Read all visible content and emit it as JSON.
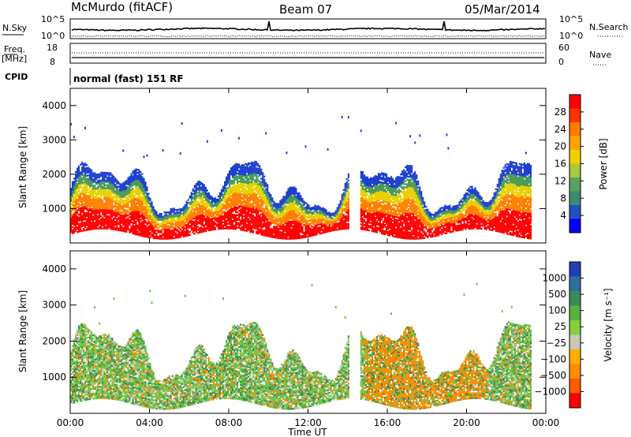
{
  "header": {
    "station": "McMurdo (fitACF)",
    "beam": "Beam 07",
    "date": "05/Mar/2014"
  },
  "top_panels": {
    "nsky_label": "N.Sky",
    "nsky_ticks": [
      "10^5",
      "10^0"
    ],
    "nsearch_label": "N.Search",
    "nsearch_ticks": [
      "10^5",
      "10^0"
    ],
    "freq_label": "Freq.",
    "freq_unit": "[MHz]",
    "freq_ticks": [
      "18",
      "8"
    ],
    "nave_label": "Nave",
    "nave_ticks": [
      "60",
      "0"
    ],
    "cpid_label": "CPID",
    "cpid_text": "normal (fast) 151 RF"
  },
  "chart_data": [
    {
      "type": "heatmap",
      "name": "power",
      "ylabel": "Slant Range [km]",
      "yticks": [
        "4000",
        "3000",
        "2000",
        "1000"
      ],
      "ytick_values": [
        4000,
        3000,
        2000,
        1000
      ],
      "ylim": [
        0,
        4500
      ],
      "xlim": [
        0,
        24
      ],
      "colorbar_label": "Power [dB]",
      "colorbar_ticks": [
        "28",
        "24",
        "20",
        "16",
        "12",
        "8",
        "4"
      ],
      "colorbar_colors": [
        "#ff0000",
        "#ff3300",
        "#ff7a00",
        "#ffa500",
        "#f0d000",
        "#a8c840",
        "#5aa060",
        "#3c8c70",
        "#2450c0",
        "#0000ff"
      ]
    },
    {
      "type": "heatmap",
      "name": "velocity",
      "ylabel": "Slant Range [km]",
      "yticks": [
        "4000",
        "3000",
        "2000",
        "1000"
      ],
      "ytick_values": [
        4000,
        3000,
        2000,
        1000
      ],
      "ylim": [
        0,
        4500
      ],
      "xlim": [
        0,
        24
      ],
      "xlabel": "Time UT",
      "xticks": [
        "00:00",
        "04:00",
        "08:00",
        "12:00",
        "16:00",
        "20:00",
        "00:00"
      ],
      "xtick_values": [
        0,
        4,
        8,
        12,
        16,
        20,
        24
      ],
      "colorbar_label": "Velocity [m s⁻¹]",
      "colorbar_ticks": [
        "1000",
        "500",
        "100",
        "25",
        "−25",
        "−100",
        "−500",
        "−1000"
      ],
      "colorbar_colors": [
        "#2040b0",
        "#3070a0",
        "#3c8c5a",
        "#5ab040",
        "#80d040",
        "#c8c8b4",
        "#ffb000",
        "#ff8c00",
        "#ff5a00",
        "#ff0000"
      ]
    }
  ],
  "colors": {
    "echo_red": "#ff0000",
    "echo_orange": "#ff8000",
    "echo_yellow": "#e8d000",
    "echo_green": "#4a9a5a",
    "echo_blue": "#1f3fd0",
    "vel_green": "#6cc644",
    "vel_darkgreen": "#3c8c5a",
    "vel_orange": "#ff8c00",
    "vel_gray": "#c8c8b4"
  }
}
